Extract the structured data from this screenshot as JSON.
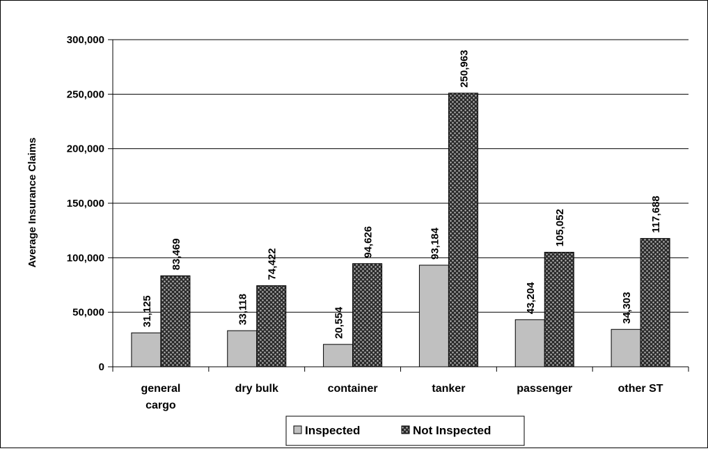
{
  "chart_data": {
    "type": "bar",
    "title": "",
    "xlabel": "",
    "ylabel": "Average Insurance Claims",
    "categories": [
      [
        "general",
        "cargo"
      ],
      [
        "dry bulk"
      ],
      [
        "container"
      ],
      [
        "tanker"
      ],
      [
        "passenger"
      ],
      [
        "other ST"
      ]
    ],
    "series": [
      {
        "name": "Inspected",
        "values": [
          31125,
          33118,
          20554,
          93184,
          43204,
          34303
        ],
        "labels": [
          "31,125",
          "33,118",
          "20,554",
          "93,184",
          "43,204",
          "34,303"
        ],
        "color": "#c0c0c0"
      },
      {
        "name": "Not Inspected",
        "values": [
          83469,
          74422,
          94626,
          250963,
          105052,
          117688
        ],
        "labels": [
          "83,469",
          "74,422",
          "94,626",
          "250,963",
          "105,052",
          "117,688"
        ],
        "color": "#404040",
        "pattern": "dotted"
      }
    ],
    "ylim": [
      0,
      300000
    ],
    "yticks": [
      0,
      50000,
      100000,
      150000,
      200000,
      250000,
      300000
    ],
    "ytick_labels": [
      "0",
      "50,000",
      "100,000",
      "150,000",
      "200,000",
      "250,000",
      "300,000"
    ],
    "grid": true,
    "legend_position": "bottom"
  }
}
